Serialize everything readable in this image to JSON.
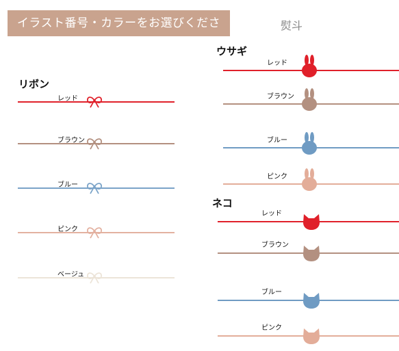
{
  "header": {
    "banner_text": "イラスト番号・カラーをお選びください。",
    "noshi_label": "熨斗"
  },
  "ribbon": {
    "title": "リボン",
    "items": [
      {
        "label": "レッド",
        "color": "#e0202a",
        "icon": "ribbon-bow-icon"
      },
      {
        "label": "ブラウン",
        "color": "#b39080",
        "icon": "ribbon-bow-icon"
      },
      {
        "label": "ブルー",
        "color": "#7aa3c8",
        "icon": "ribbon-bow-icon"
      },
      {
        "label": "ピンク",
        "color": "#e3b1a0",
        "icon": "ribbon-bow-icon"
      },
      {
        "label": "ベージュ",
        "color": "#ece4d8",
        "icon": "ribbon-bow-icon"
      }
    ]
  },
  "rabbit": {
    "title": "ウサギ",
    "items": [
      {
        "label": "レッド",
        "color": "#e0202a",
        "icon": "rabbit-head-icon"
      },
      {
        "label": "ブラウン",
        "color": "#b39080",
        "icon": "rabbit-head-icon"
      },
      {
        "label": "ブルー",
        "color": "#6f9bc3",
        "icon": "rabbit-head-icon"
      },
      {
        "label": "ピンク",
        "color": "#e3ad99",
        "icon": "rabbit-head-icon"
      }
    ]
  },
  "cat": {
    "title": "ネコ",
    "items": [
      {
        "label": "レッド",
        "color": "#e0202a",
        "icon": "cat-head-icon"
      },
      {
        "label": "ブラウン",
        "color": "#b39080",
        "icon": "cat-head-icon"
      },
      {
        "label": "ブルー",
        "color": "#6f9bc3",
        "icon": "cat-head-icon"
      },
      {
        "label": "ピンク",
        "color": "#e3ad99",
        "icon": "cat-head-icon"
      }
    ]
  }
}
